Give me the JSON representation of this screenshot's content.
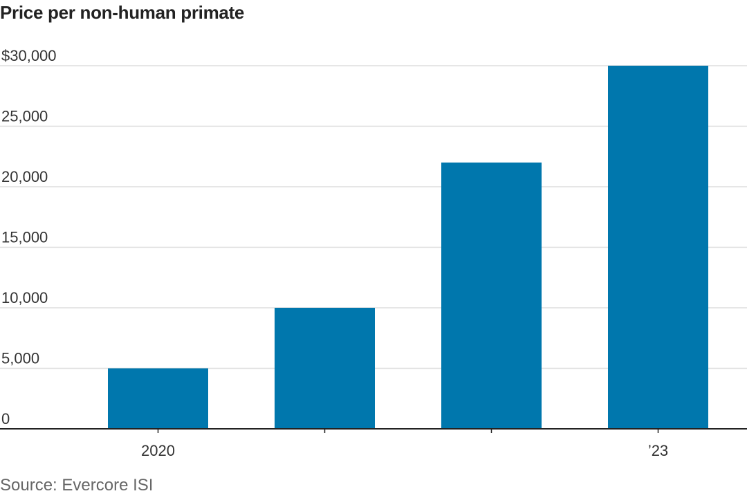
{
  "chart_data": {
    "type": "bar",
    "title": "Price per non-human primate",
    "xlabel": "",
    "ylabel": "",
    "categories": [
      "2020",
      "",
      "",
      "’23"
    ],
    "values": [
      5000,
      10000,
      22000,
      30000
    ],
    "ylim": [
      0,
      30000
    ],
    "yticks": [
      0,
      5000,
      10000,
      15000,
      20000,
      25000,
      30000
    ],
    "ytick_labels": [
      "0",
      "5,000",
      "10,000",
      "15,000",
      "20,000",
      "25,000",
      "$30,000"
    ],
    "grid": true,
    "legend": "none",
    "bar_color": "#0077AD",
    "grid_color": "#DDDDDD",
    "axis_color": "#222222"
  },
  "source": "Source: Evercore ISI"
}
